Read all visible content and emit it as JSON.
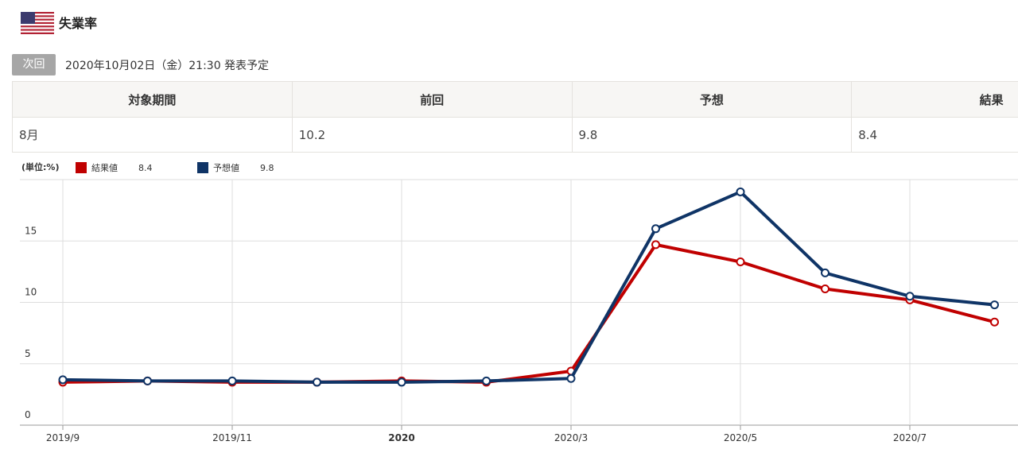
{
  "header": {
    "title": "失業率",
    "badge": "次回",
    "next_release": "2020年10月02日（金）21:30 発表予定"
  },
  "table": {
    "header": [
      "対象期間",
      "前回",
      "予想",
      "結果"
    ],
    "rows": [
      [
        "8月",
        "10.2",
        "9.8",
        "8.4"
      ]
    ]
  },
  "chart_data": {
    "type": "line",
    "unit_label": "(単位:%)",
    "categories": [
      "2019/9",
      null,
      "2019/11",
      null,
      "2020",
      null,
      "2020/3",
      null,
      "2020/5",
      null,
      "2020/7",
      null
    ],
    "series": [
      {
        "name": "結果値",
        "color": "#c00000",
        "values": [
          3.5,
          3.6,
          3.5,
          3.5,
          3.6,
          3.5,
          4.4,
          14.7,
          13.3,
          11.1,
          10.2,
          8.4
        ]
      },
      {
        "name": "予想値",
        "color": "#0f3466",
        "values": [
          3.7,
          3.6,
          3.6,
          3.5,
          3.5,
          3.6,
          3.8,
          16.0,
          19.0,
          12.4,
          10.5,
          9.8
        ]
      }
    ],
    "ylim": [
      0,
      20
    ],
    "yticks": [
      0,
      5,
      10,
      15
    ],
    "grid": true
  }
}
